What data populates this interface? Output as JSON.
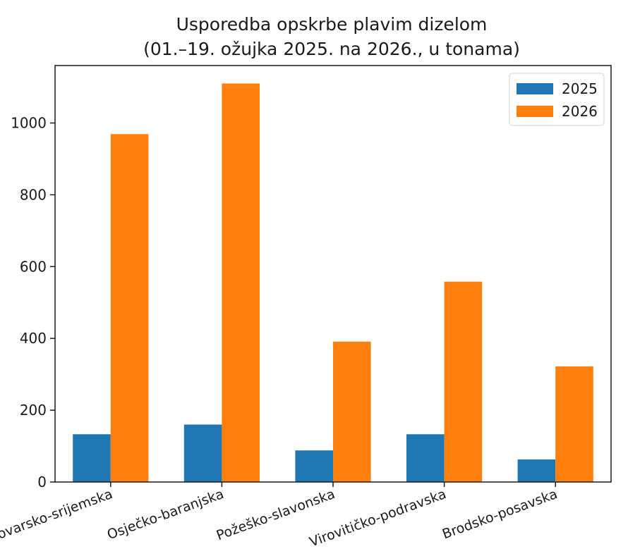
{
  "chart_data": {
    "type": "bar",
    "title": "Usporedba opskrbe plavim dizelom",
    "subtitle": "(01.–19. ožujka 2025. na 2026., u tonama)",
    "xlabel": "",
    "ylabel": "",
    "categories": [
      "Vukovarsko-srijemska",
      "Osječko-baranjska",
      "Požeško-slavonska",
      "Virovitičko-podravska",
      "Brodsko-posavska"
    ],
    "series": [
      {
        "name": "2025",
        "color": "#1f77b4",
        "values": [
          133,
          160,
          88,
          133,
          63
        ]
      },
      {
        "name": "2026",
        "color": "#ff7f0e",
        "values": [
          969,
          1110,
          391,
          558,
          322
        ]
      }
    ],
    "ylim": [
      0,
      1160
    ],
    "yticks": [
      0,
      200,
      400,
      600,
      800,
      1000
    ],
    "grid": false,
    "legend_position": "top-right",
    "xtick_rotation": -20
  }
}
